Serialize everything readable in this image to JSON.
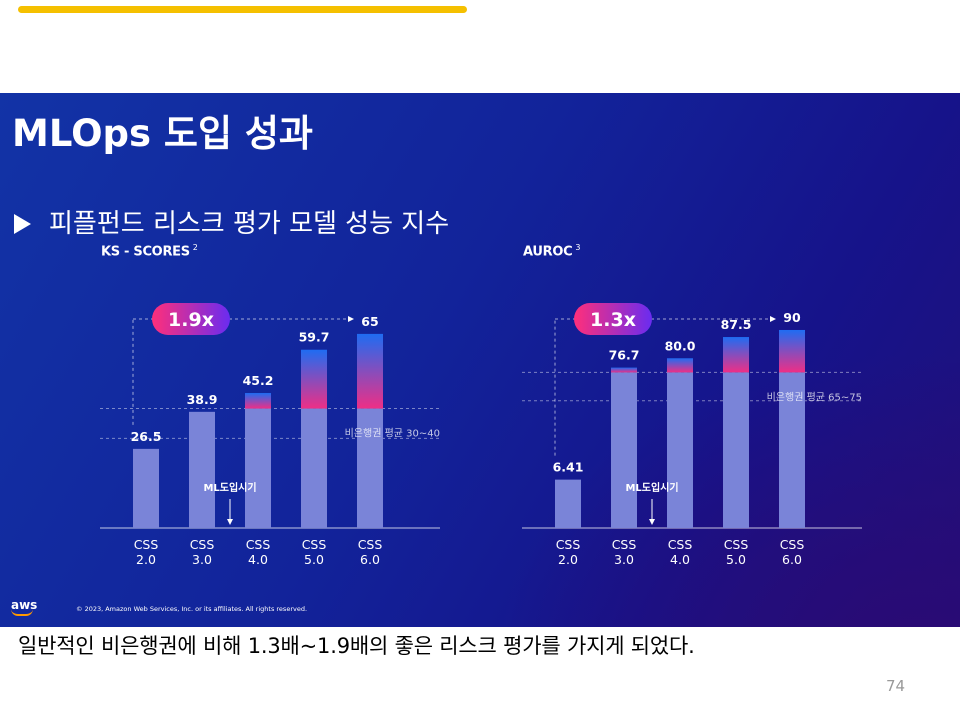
{
  "slide": {
    "title": "MLOps 도입 성과",
    "subtitle": "피플펀드 리스크 평가 모델 성능 지수",
    "footer_logo": "aws",
    "copyright": "© 2023, Amazon Web Services, Inc. or its affiliates. All rights reserved."
  },
  "caption": "일반적인 비은행권에 비해 1.3배~1.9배의 좋은 리스크 평가를 가지게 되었다.",
  "page_number": "74",
  "colors": {
    "top_bar": "#f5c000",
    "bar_base": "#7a84d8",
    "bar_gradient_top": "#1f6cf2",
    "bar_gradient_bottom": "#ee2f86",
    "badge_from": "#ff2f7a",
    "badge_to": "#6a2cf0"
  },
  "chart_data": [
    {
      "type": "bar",
      "title": "KS - SCORES",
      "footnote": "2",
      "categories": [
        "CSS\n2.0",
        "CSS\n3.0",
        "CSS\n4.0",
        "CSS\n5.0",
        "CSS\n6.0"
      ],
      "values": [
        26.5,
        38.9,
        45.2,
        59.7,
        65
      ],
      "value_labels": [
        "26.5",
        "38.9",
        "45.2",
        "59.7",
        "65"
      ],
      "ylim": [
        0,
        72
      ],
      "average_range": [
        30,
        40
      ],
      "average_label": "비은행권 평균 30~40",
      "ml_adoption_label": "ML도입시기",
      "ml_adoption_between": [
        1,
        2
      ],
      "multiplier_badge": "1.9x"
    },
    {
      "type": "bar",
      "title": "AUROC",
      "footnote": "3",
      "categories": [
        "CSS\n2.0",
        "CSS\n3.0",
        "CSS\n4.0",
        "CSS\n5.0",
        "CSS\n6.0"
      ],
      "values": [
        6.41,
        76.7,
        80.0,
        87.5,
        90
      ],
      "value_labels": [
        "6.41",
        "76.7",
        "80.0",
        "87.5",
        "90"
      ],
      "value_positions": [
        37.1,
        76.7,
        80.0,
        87.5,
        90
      ],
      "ylim": [
        20,
        96
      ],
      "average_range": [
        65,
        75
      ],
      "average_label": "비은행권 평균 65~75",
      "ml_adoption_label": "ML도입시기",
      "ml_adoption_between": [
        1,
        2
      ],
      "multiplier_badge": "1.3x"
    }
  ]
}
